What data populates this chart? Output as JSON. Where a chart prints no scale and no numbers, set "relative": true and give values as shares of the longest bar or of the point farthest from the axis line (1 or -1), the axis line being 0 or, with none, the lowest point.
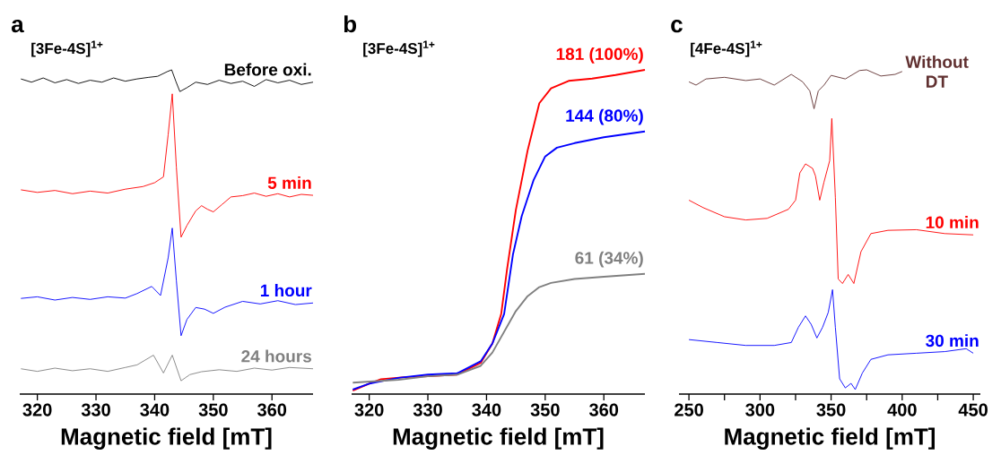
{
  "chart_data": [
    {
      "type": "line",
      "title": "a",
      "subtitle": "[3Fe-4S]$^{1+}$",
      "xlabel": "Magnetic field [mT]",
      "relative": true,
      "xlim": [
        317,
        367
      ],
      "xticks": [
        320,
        330,
        340,
        350,
        360
      ],
      "series": [
        {
          "name": "Before oxi.",
          "color": "#000000",
          "x": [
            317.2,
            319,
            321,
            323,
            325,
            327,
            329,
            331,
            333,
            335,
            337,
            339,
            340.5,
            342.2,
            342.9,
            343.6,
            344.3,
            345.5,
            347,
            349,
            351,
            353,
            355,
            357,
            359,
            361,
            363,
            365,
            367
          ],
          "values": [
            0.972,
            0.962,
            0.975,
            0.96,
            0.97,
            0.958,
            0.968,
            0.962,
            0.975,
            0.965,
            0.972,
            0.977,
            0.98,
            0.995,
            1.0,
            0.965,
            0.933,
            0.945,
            0.962,
            0.955,
            0.968,
            0.958,
            0.965,
            0.949,
            0.97,
            0.96,
            0.968,
            0.955,
            0.962
          ]
        },
        {
          "name": "5 min",
          "color": "#ff0000",
          "x": [
            317.2,
            320,
            323,
            326,
            329,
            332,
            335,
            338,
            340,
            341.5,
            342.3,
            343,
            343.7,
            344.5,
            345.5,
            347,
            348,
            349,
            350,
            351.5,
            353,
            355,
            357,
            359,
            361,
            363,
            365,
            367
          ],
          "values": [
            0.63,
            0.622,
            0.628,
            0.618,
            0.626,
            0.62,
            0.632,
            0.64,
            0.652,
            0.67,
            0.8,
            0.926,
            0.7,
            0.484,
            0.52,
            0.565,
            0.581,
            0.57,
            0.562,
            0.585,
            0.608,
            0.612,
            0.62,
            0.61,
            0.618,
            0.608,
            0.616,
            0.613
          ]
        },
        {
          "name": "1 hour",
          "color": "#0000ff",
          "x": [
            317.2,
            320,
            323,
            326,
            329,
            332,
            335,
            337,
            339.5,
            341,
            342.3,
            343,
            343.7,
            344.5,
            345.5,
            347,
            348.5,
            350,
            352,
            355,
            358,
            361,
            364,
            367
          ],
          "values": [
            0.295,
            0.3,
            0.29,
            0.298,
            0.292,
            0.3,
            0.296,
            0.31,
            0.332,
            0.304,
            0.42,
            0.512,
            0.35,
            0.18,
            0.23,
            0.267,
            0.262,
            0.249,
            0.268,
            0.286,
            0.278,
            0.288,
            0.276,
            0.281
          ]
        },
        {
          "name": "24 hours",
          "color": "#808080",
          "x": [
            317.2,
            320,
            323,
            326,
            329,
            332,
            335,
            337,
            339.8,
            341.5,
            343,
            344.5,
            346,
            348,
            351,
            354,
            357,
            360,
            363,
            367
          ],
          "values": [
            0.078,
            0.07,
            0.08,
            0.072,
            0.078,
            0.07,
            0.082,
            0.09,
            0.12,
            0.065,
            0.12,
            0.041,
            0.06,
            0.069,
            0.075,
            0.07,
            0.08,
            0.074,
            0.082,
            0.078
          ]
        }
      ]
    },
    {
      "type": "line",
      "title": "b",
      "subtitle": "[3Fe-4S]$^{1+}$",
      "xlabel": "Magnetic field [mT]",
      "relative": true,
      "xlim": [
        317,
        367
      ],
      "xticks": [
        320,
        330,
        340,
        350,
        360
      ],
      "series": [
        {
          "name": "181 (100%)",
          "color": "#ff0000",
          "x": [
            317.2,
            320,
            322,
            326,
            330,
            335,
            339,
            341,
            342.5,
            343.5,
            345,
            347,
            349,
            351,
            354,
            358,
            362,
            367
          ],
          "values": [
            0.011,
            0.032,
            0.046,
            0.052,
            0.055,
            0.06,
            0.096,
            0.156,
            0.247,
            0.385,
            0.568,
            0.751,
            0.897,
            0.943,
            0.966,
            0.973,
            0.984,
            1.0
          ]
        },
        {
          "name": "144 (80%)",
          "color": "#0000ff",
          "x": [
            317.2,
            320,
            325,
            330,
            335,
            339,
            341,
            343,
            344.5,
            346,
            348,
            350,
            352,
            355,
            360,
            367
          ],
          "values": [
            0.014,
            0.032,
            0.05,
            0.06,
            0.064,
            0.101,
            0.156,
            0.247,
            0.43,
            0.549,
            0.659,
            0.733,
            0.76,
            0.774,
            0.792,
            0.81
          ]
        },
        {
          "name": "61 (34%)",
          "color": "#808080",
          "x": [
            317.2,
            325,
            330,
            335,
            339,
            341,
            343,
            345,
            347,
            349,
            351,
            355,
            360,
            367
          ],
          "values": [
            0.035,
            0.044,
            0.055,
            0.06,
            0.087,
            0.128,
            0.192,
            0.256,
            0.302,
            0.33,
            0.343,
            0.355,
            0.362,
            0.371
          ]
        }
      ]
    },
    {
      "type": "line",
      "title": "c",
      "subtitle": "[4Fe-4S]$^{1+}$",
      "xlabel": "Magnetic field [mT]",
      "relative": true,
      "xlim": [
        243,
        455
      ],
      "xticks": [
        250,
        {
          "value": 275,
          "label": null
        },
        300,
        {
          "value": 325,
          "label": null
        },
        350,
        {
          "value": 375,
          "label": null
        },
        400,
        {
          "value": 425,
          "label": null
        },
        450
      ],
      "series": [
        {
          "name": "Without DT",
          "color": "#603030",
          "x": [
            250,
            255,
            262,
            275,
            290,
            300,
            310,
            322,
            330,
            335,
            338,
            341,
            345,
            350,
            360,
            370,
            375,
            385,
            395,
            400
          ],
          "values": [
            0.963,
            0.953,
            0.972,
            0.977,
            0.967,
            0.972,
            0.953,
            0.986,
            0.963,
            0.935,
            0.88,
            0.935,
            0.953,
            0.983,
            0.972,
            0.998,
            1.0,
            0.981,
            0.986,
            0.995
          ]
        },
        {
          "name": "10 min",
          "color": "#ff0000",
          "x": [
            250,
            260,
            275,
            290,
            305,
            320,
            325,
            328,
            332,
            337,
            339,
            342,
            345,
            349,
            350.5,
            353,
            355,
            358,
            362,
            366,
            371,
            378,
            390,
            410,
            430,
            450
          ],
          "values": [
            0.598,
            0.575,
            0.547,
            0.537,
            0.542,
            0.57,
            0.598,
            0.682,
            0.71,
            0.696,
            0.673,
            0.598,
            0.654,
            0.72,
            0.85,
            0.607,
            0.355,
            0.341,
            0.369,
            0.341,
            0.439,
            0.495,
            0.505,
            0.507,
            0.495,
            0.491
          ]
        },
        {
          "name": "30 min",
          "color": "#0000ff",
          "x": [
            250,
            270,
            290,
            310,
            322,
            327,
            332,
            336,
            340,
            344,
            348,
            351,
            353,
            356,
            360,
            364,
            367,
            372,
            378,
            390,
            410,
            430,
            445,
            450
          ],
          "values": [
            0.168,
            0.159,
            0.15,
            0.15,
            0.159,
            0.206,
            0.241,
            0.215,
            0.173,
            0.206,
            0.252,
            0.322,
            0.206,
            0.047,
            0.019,
            0.033,
            0.014,
            0.065,
            0.107,
            0.121,
            0.126,
            0.131,
            0.14,
            0.126
          ]
        }
      ]
    }
  ]
}
